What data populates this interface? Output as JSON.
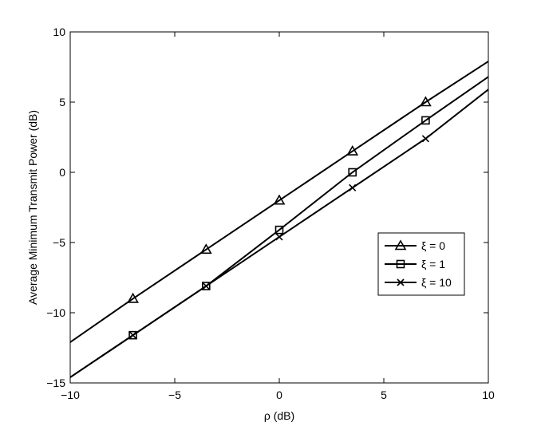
{
  "chart_data": {
    "type": "line",
    "title": "",
    "xlabel": "ρ (dB)",
    "ylabel": "Average Minimum Transmit Power (dB)",
    "xlim": [
      -10,
      10
    ],
    "ylim": [
      -15,
      10
    ],
    "xticks": [
      -10,
      -5,
      0,
      5,
      10
    ],
    "yticks": [
      -15,
      -10,
      -5,
      0,
      5,
      10
    ],
    "xtick_labels": [
      "−10",
      "−5",
      "0",
      "5",
      "10"
    ],
    "ytick_labels": [
      "−15",
      "−10",
      "−5",
      "0",
      "5",
      "10"
    ],
    "grid": false,
    "legend_position": "right",
    "colors": {
      "line": "#000000",
      "axes": "#000000",
      "background": "#ffffff"
    },
    "series": [
      {
        "name": "ξ = 0",
        "marker": "triangle",
        "x": [
          -10,
          -7,
          -3.5,
          0,
          3.5,
          7,
          10
        ],
        "y": [
          -12.1,
          -9.0,
          -5.5,
          -2.0,
          1.5,
          5.0,
          7.9
        ],
        "marker_x": [
          -7,
          -3.5,
          0,
          3.5,
          7
        ],
        "marker_y": [
          -9.0,
          -5.5,
          -2.0,
          1.5,
          5.0
        ]
      },
      {
        "name": "ξ = 1",
        "marker": "square",
        "x": [
          -10,
          -7,
          -3.5,
          0,
          3.5,
          7,
          10
        ],
        "y": [
          -14.6,
          -11.6,
          -8.1,
          -4.1,
          0.0,
          3.7,
          6.8
        ],
        "marker_x": [
          -7,
          -3.5,
          0,
          3.5,
          7
        ],
        "marker_y": [
          -11.6,
          -8.1,
          -4.1,
          0.0,
          3.7
        ]
      },
      {
        "name": "ξ = 10",
        "marker": "x",
        "x": [
          -10,
          -7,
          -3.5,
          0,
          3.5,
          7,
          10
        ],
        "y": [
          -14.6,
          -11.6,
          -8.1,
          -4.6,
          -1.1,
          2.4,
          5.9
        ],
        "marker_x": [
          -7,
          -3.5,
          0,
          3.5,
          7
        ],
        "marker_y": [
          -11.6,
          -8.1,
          -4.6,
          -1.1,
          2.4
        ]
      }
    ]
  }
}
